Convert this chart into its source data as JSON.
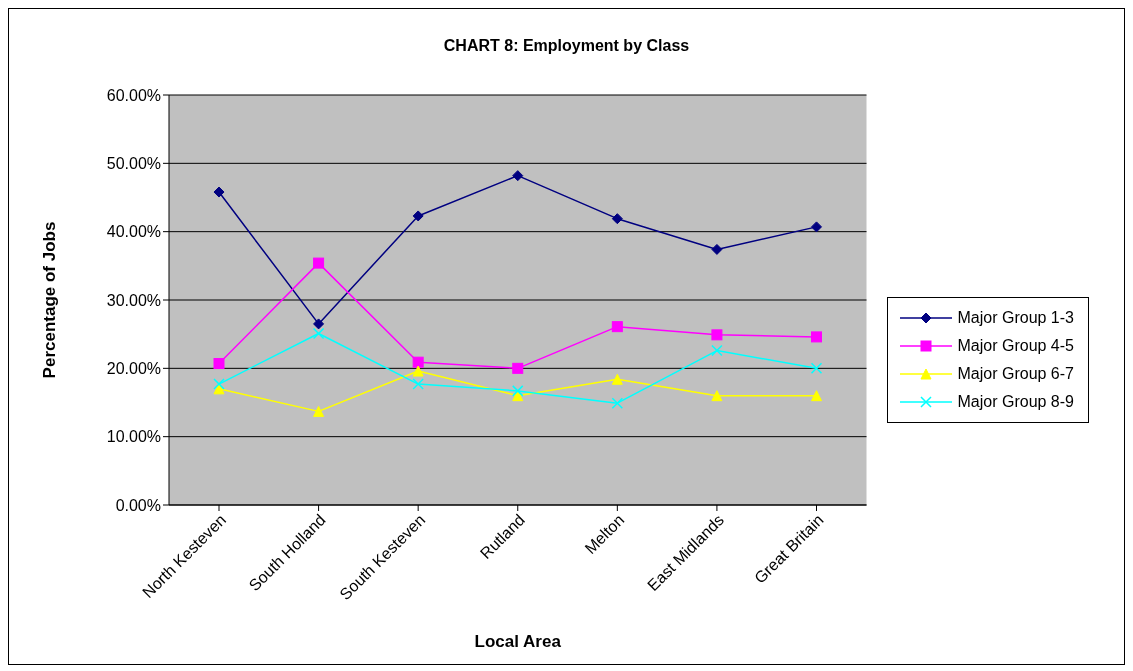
{
  "chart_data": {
    "type": "line",
    "title": "CHART 8: Employment by Class",
    "xlabel": "Local Area",
    "ylabel": "Percentage of Jobs",
    "categories": [
      "North Kesteven",
      "South Holland",
      "South Kesteven",
      "Rutland",
      "Melton",
      "East Midlands",
      "Great Britain"
    ],
    "series": [
      {
        "name": "Major Group 1-3",
        "color": "#000080",
        "marker": "diamond",
        "values": [
          45.8,
          26.5,
          42.3,
          48.2,
          41.9,
          37.4,
          40.7
        ]
      },
      {
        "name": "Major Group 4-5",
        "color": "#ff00ff",
        "marker": "square",
        "values": [
          20.7,
          35.4,
          20.9,
          20.0,
          26.1,
          24.9,
          24.6
        ]
      },
      {
        "name": "Major Group 6-7",
        "color": "#ffff00",
        "marker": "triangle",
        "values": [
          17.0,
          13.7,
          19.6,
          16.0,
          18.4,
          16.0,
          16.0
        ]
      },
      {
        "name": "Major Group 8-9",
        "color": "#00ffff",
        "marker": "cross",
        "values": [
          17.7,
          25.1,
          17.7,
          16.7,
          14.9,
          22.6,
          20.0
        ]
      }
    ],
    "ylim": [
      0,
      60
    ],
    "yticks": [
      {
        "value": 0,
        "label": "0.00%"
      },
      {
        "value": 10,
        "label": "10.00%"
      },
      {
        "value": 20,
        "label": "20.00%"
      },
      {
        "value": 30,
        "label": "30.00%"
      },
      {
        "value": 40,
        "label": "40.00%"
      },
      {
        "value": 50,
        "label": "50.00%"
      },
      {
        "value": 60,
        "label": "60.00%"
      }
    ],
    "grid": "y",
    "legend": "right"
  }
}
